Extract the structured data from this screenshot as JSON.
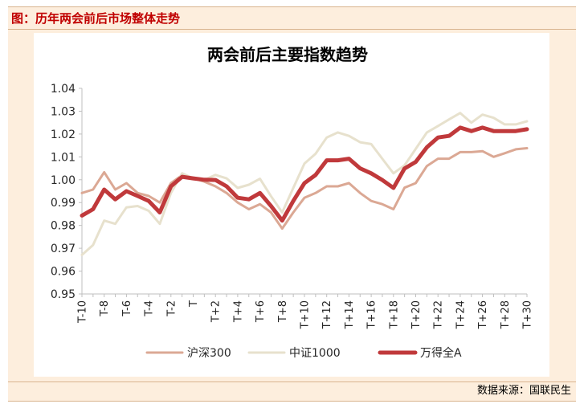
{
  "figure": {
    "title": "图：历年两会前后市场整体走势",
    "source": "数据来源：国联民生"
  },
  "chart_data": {
    "type": "line",
    "title": "两会前后主要指数趋势",
    "xlabel": "",
    "ylabel": "",
    "ylim": [
      0.95,
      1.04
    ],
    "yticks": [
      "0.95",
      "0.96",
      "0.97",
      "0.98",
      "0.99",
      "1.00",
      "1.01",
      "1.02",
      "1.03",
      "1.04"
    ],
    "x": [
      "T-10",
      "T-9",
      "T-8",
      "T-7",
      "T-6",
      "T-5",
      "T-4",
      "T-3",
      "T-2",
      "T-1",
      "T",
      "T+1",
      "T+2",
      "T+3",
      "T+4",
      "T+5",
      "T+6",
      "T+7",
      "T+8",
      "T+9",
      "T+10",
      "T+11",
      "T+12",
      "T+13",
      "T+14",
      "T+15",
      "T+16",
      "T+17",
      "T+18",
      "T+19",
      "T+20",
      "T+21",
      "T+22",
      "T+23",
      "T+24",
      "T+25",
      "T+26",
      "T+27",
      "T+28",
      "T+29",
      "T+30"
    ],
    "xtick_labels": [
      "T-10",
      "T-8",
      "T-6",
      "T-4",
      "T-2",
      "T",
      "T+2",
      "T+4",
      "T+6",
      "T+8",
      "T+10",
      "T+12",
      "T+14",
      "T+16",
      "T+18",
      "T+20",
      "T+22",
      "T+24",
      "T+26",
      "T+28",
      "T+30"
    ],
    "grid": false,
    "legend_position": "bottom",
    "series": [
      {
        "name": "沪深300",
        "color": "#dba894",
        "values": [
          0.9942,
          0.9957,
          1.0033,
          0.9957,
          0.9985,
          0.9942,
          0.9929,
          0.99,
          0.9985,
          1.002,
          1.0006,
          0.9992,
          0.9971,
          0.9942,
          0.99,
          0.9871,
          0.9893,
          0.9857,
          0.9786,
          0.9857,
          0.9921,
          0.9942,
          0.9971,
          0.9971,
          0.9985,
          0.9942,
          0.9907,
          0.9893,
          0.9871,
          0.9965,
          0.9985,
          1.006,
          1.0092,
          1.0092,
          1.0121,
          1.0121,
          1.0125,
          1.01,
          1.0116,
          1.0133,
          1.0138
        ]
      },
      {
        "name": "中证1000",
        "color": "#e7e1cd",
        "values": [
          0.9671,
          0.9714,
          0.9821,
          0.9807,
          0.9879,
          0.9885,
          0.9864,
          0.9807,
          0.9942,
          1.0028,
          1.0006,
          0.9999,
          1.0021,
          1.0006,
          0.9964,
          0.9978,
          1.0004,
          0.9928,
          0.9857,
          0.9964,
          1.0071,
          1.0114,
          1.0185,
          1.0207,
          1.0192,
          1.0164,
          1.0156,
          1.0092,
          1.0028,
          1.0063,
          1.0135,
          1.0207,
          1.0235,
          1.0264,
          1.0292,
          1.025,
          1.0285,
          1.0271,
          1.0242,
          1.0242,
          1.0256
        ]
      },
      {
        "name": "万得全A",
        "color": "#c0393b",
        "values": [
          0.9843,
          0.9871,
          0.9957,
          0.9914,
          0.995,
          0.9929,
          0.9907,
          0.9857,
          0.9971,
          1.0013,
          1.0006,
          1.0,
          0.9999,
          0.9971,
          0.9921,
          0.9914,
          0.9942,
          0.9885,
          0.9821,
          0.9907,
          0.9985,
          1.0021,
          1.0085,
          1.0085,
          1.0092,
          1.005,
          1.0028,
          0.9999,
          0.9964,
          1.0049,
          1.0078,
          1.0142,
          1.0185,
          1.0192,
          1.0228,
          1.0213,
          1.0228,
          1.0213,
          1.0213,
          1.0213,
          1.0221
        ]
      }
    ]
  }
}
